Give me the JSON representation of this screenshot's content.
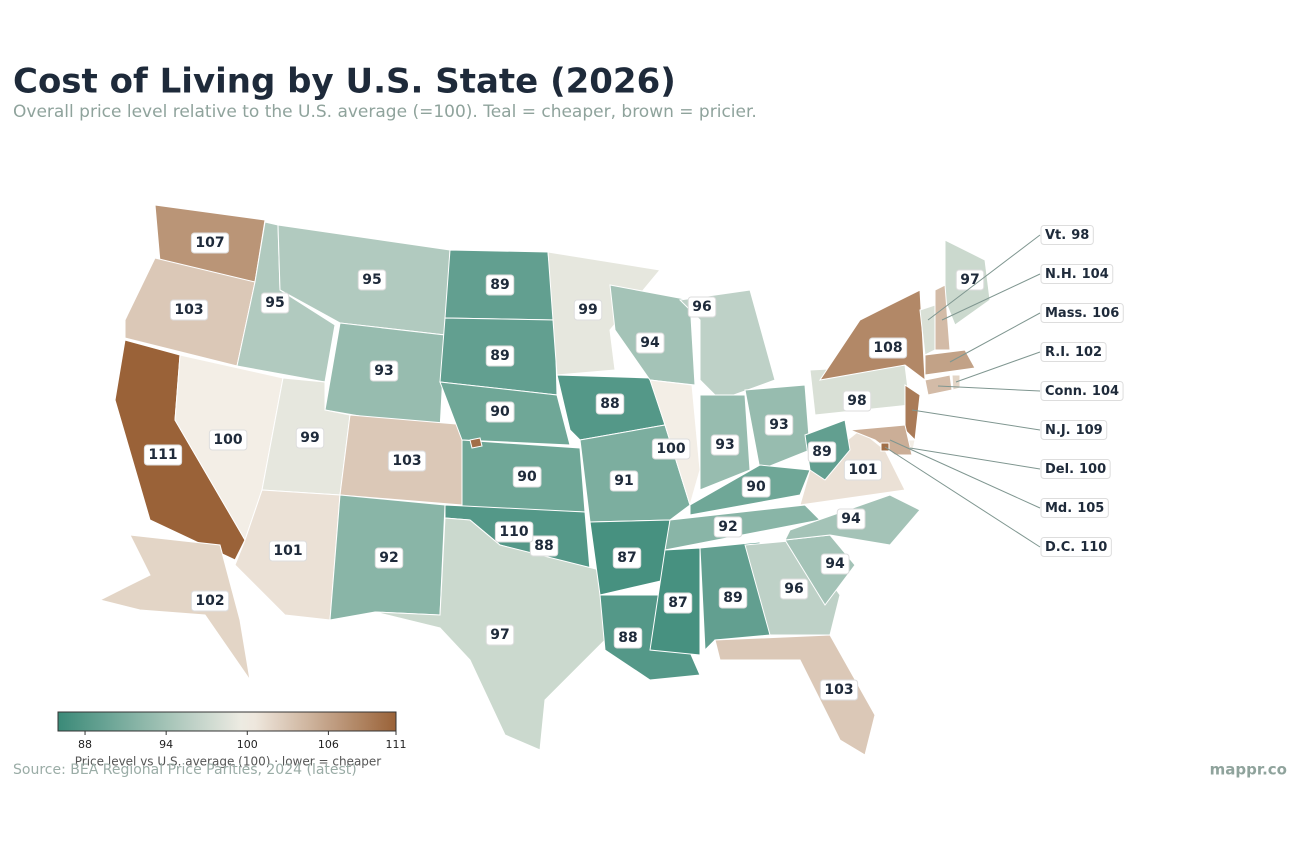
{
  "title": "Cost of Living by U.S. State (2026)",
  "subtitle": "Overall price level relative to the U.S. average (=100). Teal = cheaper, brown = pricier.",
  "map": {
    "states": [
      {
        "value": 107
      },
      {
        "value": 103
      },
      {
        "value": 111
      },
      {
        "value": 95
      },
      {
        "value": 100
      },
      {
        "value": 95
      },
      {
        "value": 93
      },
      {
        "value": 99
      },
      {
        "value": 103
      },
      {
        "value": 101
      },
      {
        "value": 92
      },
      {
        "value": 89
      },
      {
        "value": 89
      },
      {
        "value": 90
      },
      {
        "value": 90
      },
      {
        "value": 88
      },
      {
        "value": 97
      },
      {
        "value": 99
      },
      {
        "value": 88
      },
      {
        "value": 91
      },
      {
        "value": 87
      },
      {
        "value": 88
      },
      {
        "value": 94
      },
      {
        "value": 100
      },
      {
        "value": 96
      },
      {
        "value": 93
      },
      {
        "value": 93
      },
      {
        "value": 90
      },
      {
        "value": 92
      },
      {
        "value": 87
      },
      {
        "value": 89
      },
      {
        "value": 96
      },
      {
        "value": 103
      },
      {
        "value": 94
      },
      {
        "value": 94
      },
      {
        "value": 101
      },
      {
        "value": 89
      },
      {
        "value": 98
      },
      {
        "value": 108
      },
      {
        "value": 97
      },
      {
        "value": 102
      },
      {
        "value": 110
      },
      {
        "label": "Vt.",
        "value": 98
      },
      {
        "label": "N.H.",
        "value": 104
      },
      {
        "label": "Mass.",
        "value": 106
      },
      {
        "label": "R.I.",
        "value": 102
      },
      {
        "label": "Conn.",
        "value": 104
      },
      {
        "label": "N.J.",
        "value": 109
      },
      {
        "label": "Del.",
        "value": 100
      },
      {
        "label": "Md.",
        "value": 105
      },
      {
        "label": "D.C.",
        "value": 110
      }
    ],
    "colorbar": {
      "label": "Price level vs U.S. average (100) · lower = cheaper",
      "lim": [
        86,
        111
      ],
      "center": 100,
      "ticks": [
        88,
        94,
        100,
        106,
        111
      ],
      "colors": [
        "#3a8a78",
        "#f3eee6",
        "#9a6238"
      ]
    }
  },
  "source": "Source: BEA Regional Price Parities, 2024 (latest)",
  "brand": "mappr.co"
}
